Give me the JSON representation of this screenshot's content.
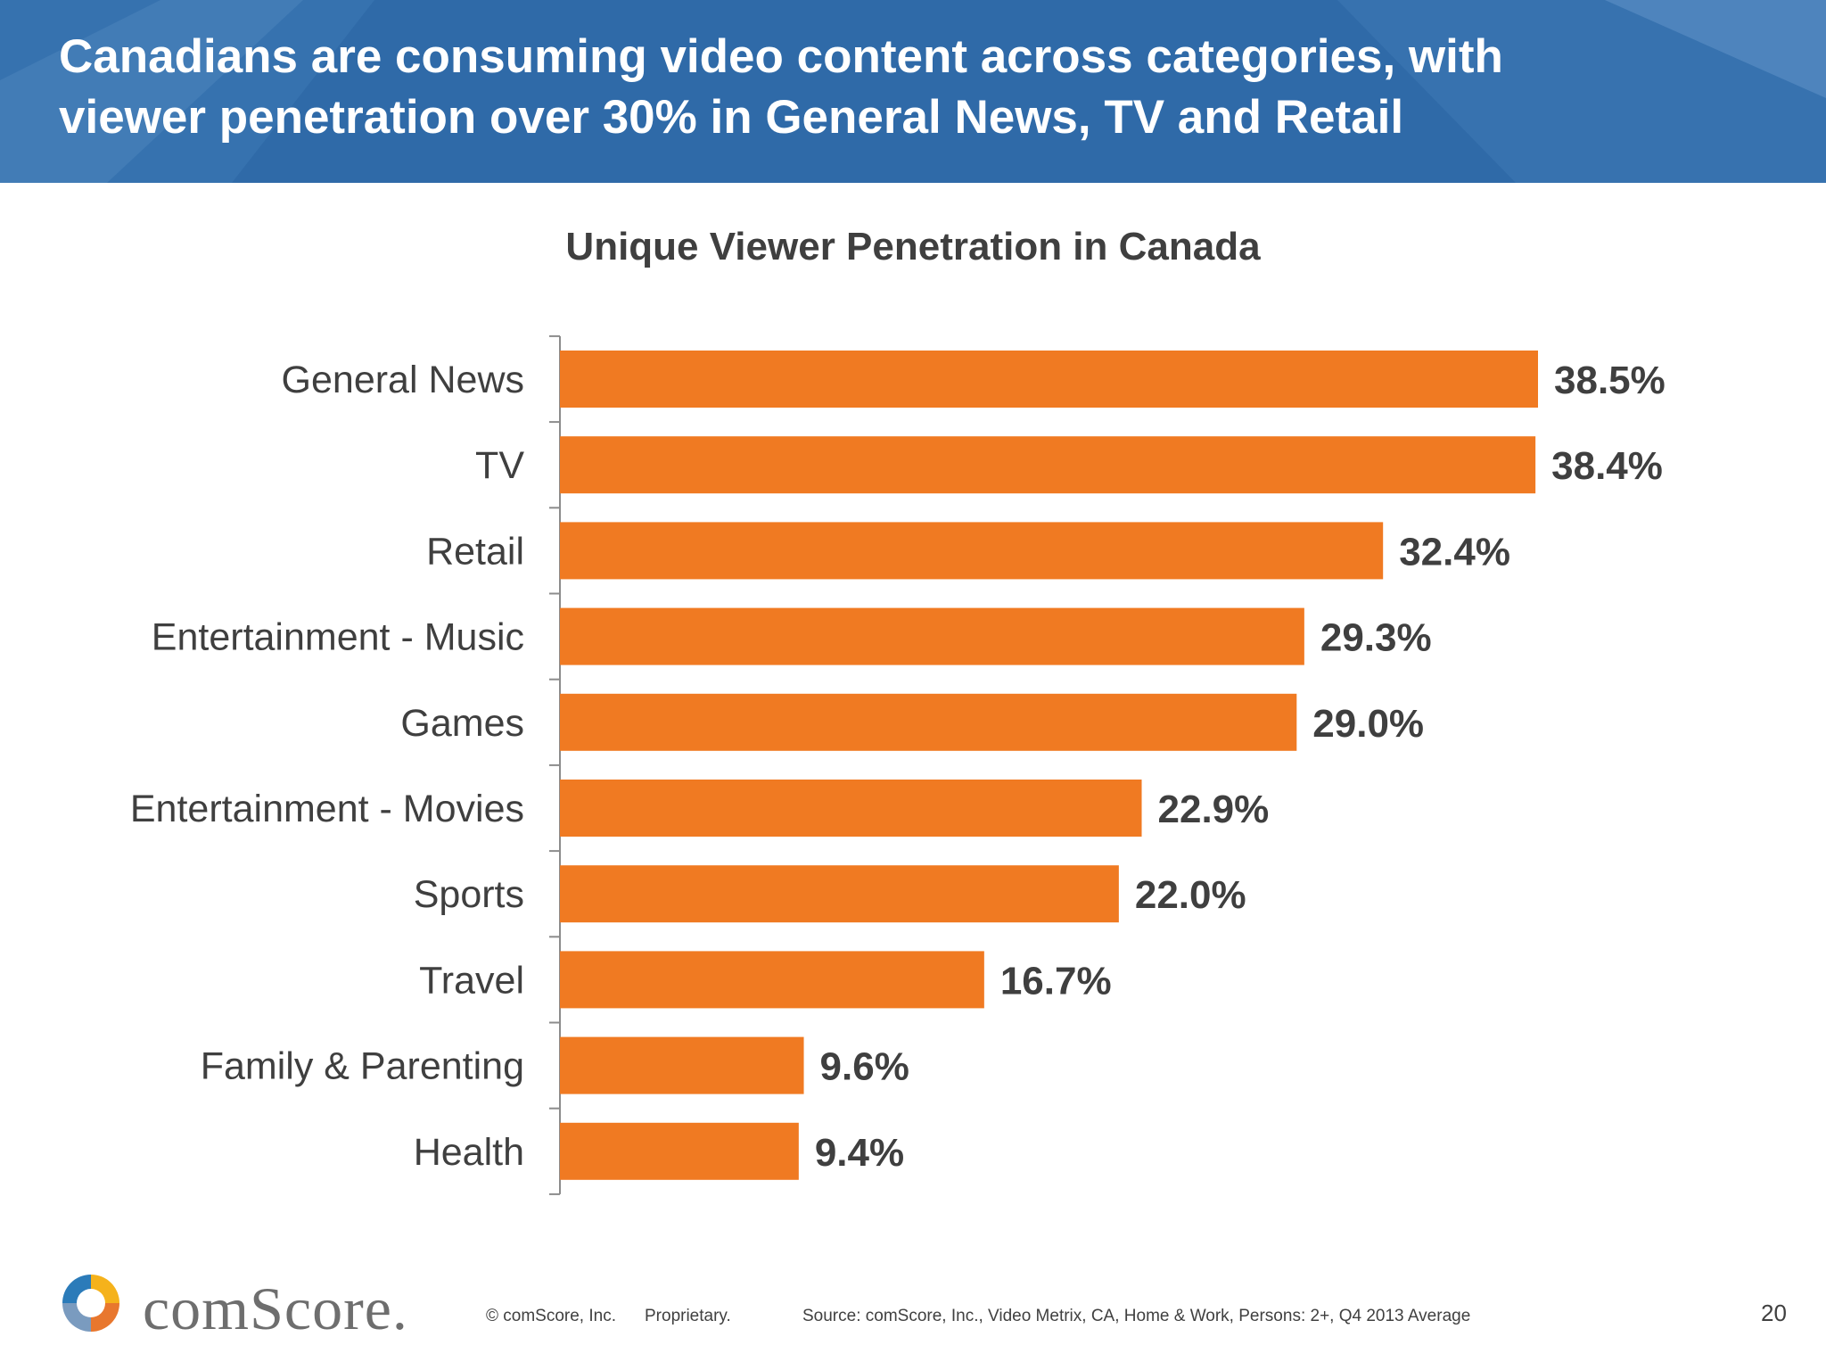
{
  "header": {
    "title_line1": "Canadians are consuming video content across categories, with",
    "title_line2": "viewer penetration over 30% in General News, TV and Retail",
    "background_color": "#2f6aa8"
  },
  "chart_data": {
    "type": "bar",
    "orientation": "horizontal",
    "title": "Unique Viewer Penetration in Canada",
    "categories": [
      "General News",
      "TV",
      "Retail",
      "Entertainment - Music",
      "Games",
      "Entertainment - Movies",
      "Sports",
      "Travel",
      "Family & Parenting",
      "Health"
    ],
    "values": [
      38.5,
      38.4,
      32.4,
      29.3,
      29.0,
      22.9,
      22.0,
      16.7,
      9.6,
      9.4
    ],
    "value_labels": [
      "38.5%",
      "38.4%",
      "32.4%",
      "29.3%",
      "29.0%",
      "22.9%",
      "22.0%",
      "16.7%",
      "9.6%",
      "9.4%"
    ],
    "xlim": [
      0,
      40
    ],
    "grid": false,
    "legend": "none",
    "bar_color": "#f07a22"
  },
  "footer": {
    "logo_text": "comScore.",
    "copyright": "© comScore, Inc.",
    "proprietary": "Proprietary.",
    "source": "Source: comScore, Inc., Video Metrix, CA, Home & Work, Persons: 2+, Q4 2013 Average",
    "page_number": "20"
  }
}
